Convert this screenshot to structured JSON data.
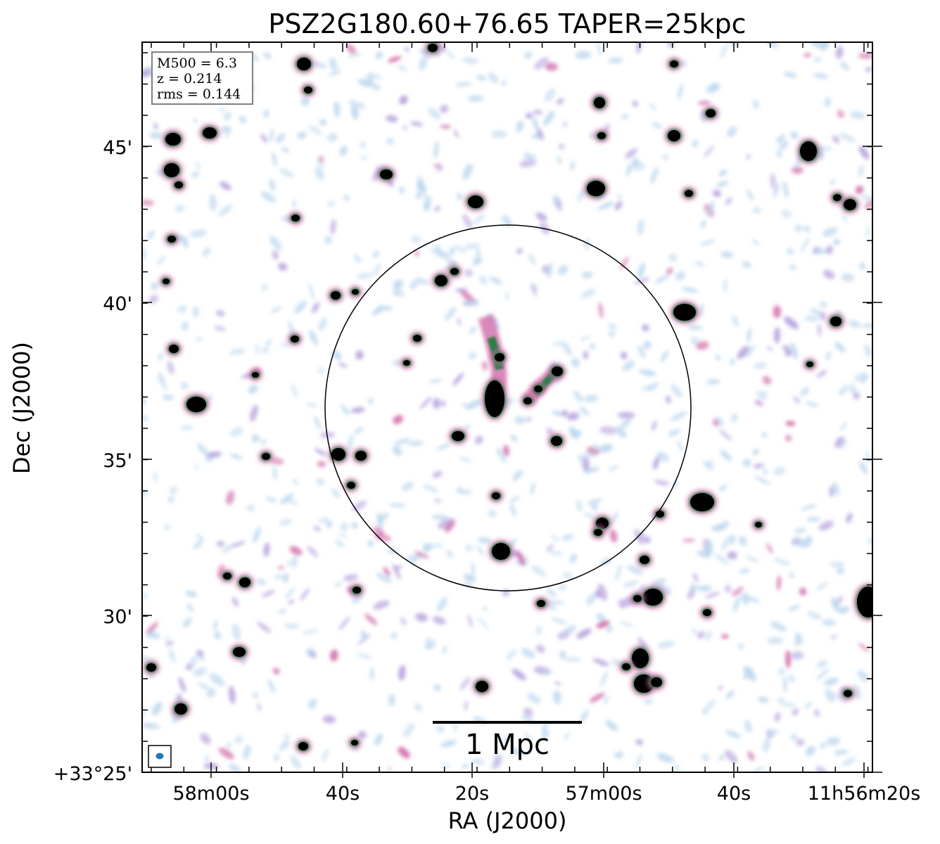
{
  "title": "PSZ2G180.60+76.65 TAPER=25kpc",
  "axes": {
    "xlabel": "RA (J2000)",
    "ylabel": "Dec (J2000)",
    "x_ticks": [
      "58m00s",
      "40s",
      "20s",
      "57m00s",
      "40s",
      "11h56m20s"
    ],
    "y_ticks": [
      "45'",
      "40'",
      "35'",
      "30'",
      "+33°25'"
    ]
  },
  "info_box": {
    "lines": [
      "M500 = 6.3",
      "z = 0.214",
      "rms = 0.144"
    ]
  },
  "scale_bar": {
    "label": "1 Mpc"
  },
  "colors": {
    "background": "#ffffff",
    "noise_light": "#bcd7ee",
    "noise_purple": "#b39ddb",
    "emission_pink": "#d06aa8",
    "emission_green": "#2e7d4a",
    "source_core": "#000000",
    "beam": "#1f77b4"
  }
}
